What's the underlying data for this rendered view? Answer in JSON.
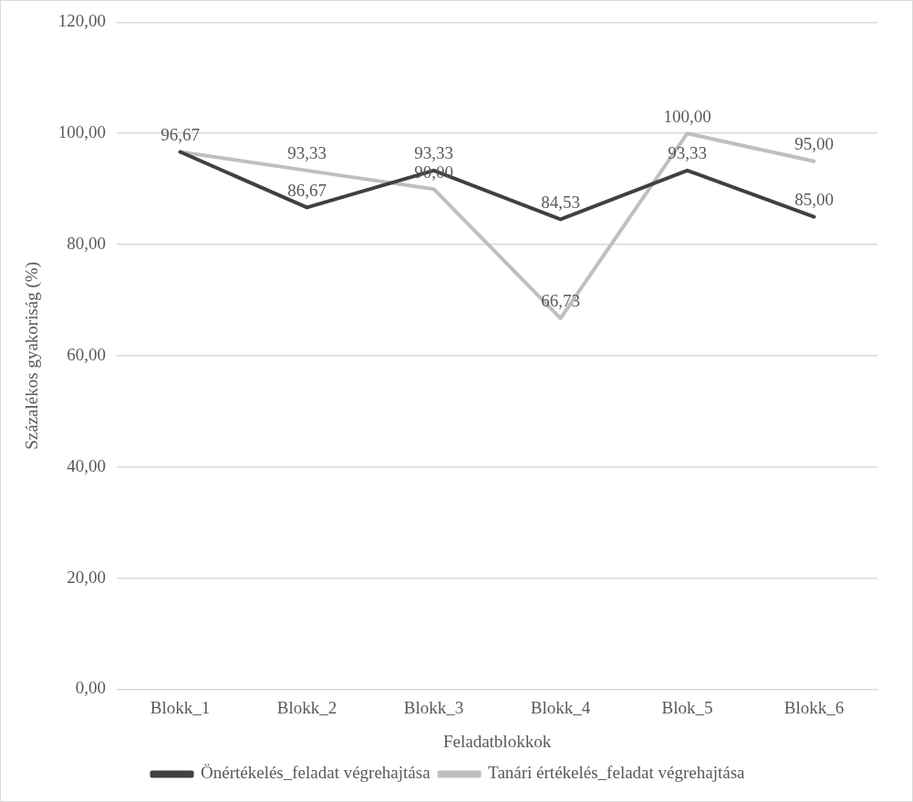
{
  "chart_data": {
    "type": "line",
    "xlabel": "Feladatblokkok",
    "ylabel": "Százalékos gyakoriság (%)",
    "categories": [
      "Blokk_1",
      "Blokk_2",
      "Blokk_3",
      "Blokk_4",
      "Blok_5",
      "Blokk_6"
    ],
    "series": [
      {
        "name": "Önértékelés_feladat végrehajtása",
        "color": "#404040",
        "values": [
          96.67,
          86.67,
          93.33,
          84.53,
          93.33,
          85.0
        ],
        "value_labels": [
          "96,67",
          "86,67",
          "93,33",
          "84,53",
          "93,33",
          "85,00"
        ]
      },
      {
        "name": "Tanári értékelés_feladat végrehajtása",
        "color": "#bfbfbf",
        "values": [
          96.67,
          93.33,
          90.0,
          66.73,
          100.0,
          95.0
        ],
        "value_labels": [
          null,
          "93,33",
          "90,00",
          "66,73",
          "100,00",
          "95,00"
        ]
      }
    ],
    "ylim": [
      0,
      120
    ],
    "yticks": [
      {
        "value": 0,
        "label": "0,00"
      },
      {
        "value": 20,
        "label": "20,00"
      },
      {
        "value": 40,
        "label": "40,00"
      },
      {
        "value": 60,
        "label": "60,00"
      },
      {
        "value": 80,
        "label": "80,00"
      },
      {
        "value": 100,
        "label": "100,00"
      },
      {
        "value": 120,
        "label": "120,00"
      }
    ],
    "grid": "y",
    "legend": "bottom",
    "marker": "none",
    "line_style": "solid"
  }
}
